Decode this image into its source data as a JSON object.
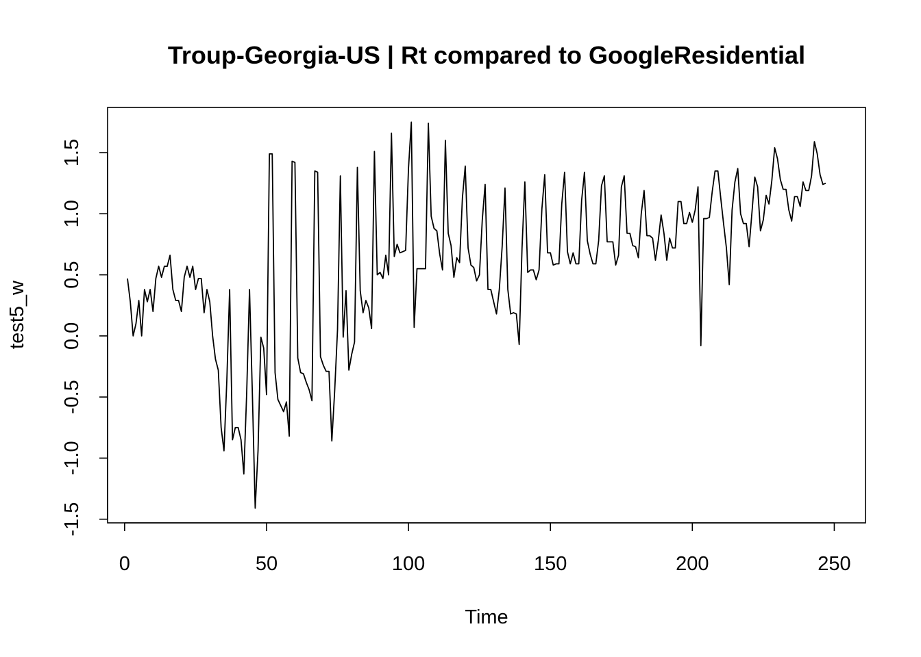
{
  "chart_data": {
    "type": "line",
    "title": "Troup-Georgia-US | Rt compared to GoogleResidential",
    "xlabel": "Time",
    "ylabel": "test5_w",
    "xlim": [
      -6,
      261
    ],
    "ylim": [
      -1.53,
      1.87
    ],
    "xticks": [
      0,
      50,
      100,
      150,
      200,
      250
    ],
    "xtick_labels": [
      "0",
      "50",
      "100",
      "150",
      "200",
      "250"
    ],
    "yticks": [
      -1.5,
      -1.0,
      -0.5,
      0.0,
      0.5,
      1.0,
      1.5
    ],
    "ytick_labels": [
      "-1.5",
      "-1.0",
      "-0.5",
      "0.0",
      "0.5",
      "1.0",
      "1.5"
    ],
    "grid": false,
    "legend": "none",
    "line_color": "#000000",
    "x_start": 1,
    "y": [
      0.47,
      0.28,
      0.0,
      0.1,
      0.29,
      0.0,
      0.38,
      0.28,
      0.38,
      0.2,
      0.47,
      0.57,
      0.48,
      0.57,
      0.57,
      0.66,
      0.38,
      0.29,
      0.29,
      0.2,
      0.48,
      0.57,
      0.48,
      0.57,
      0.38,
      0.47,
      0.47,
      0.19,
      0.38,
      0.28,
      0.0,
      -0.19,
      -0.28,
      -0.75,
      -0.94,
      -0.37,
      0.38,
      -0.85,
      -0.75,
      -0.75,
      -0.85,
      -1.13,
      -0.47,
      0.38,
      -0.47,
      -1.41,
      -0.94,
      -0.01,
      -0.1,
      -0.48,
      1.49,
      1.49,
      -0.3,
      -0.52,
      -0.57,
      -0.62,
      -0.54,
      -0.82,
      1.43,
      1.42,
      -0.18,
      -0.3,
      -0.31,
      -0.38,
      -0.44,
      -0.53,
      1.35,
      1.34,
      -0.17,
      -0.24,
      -0.29,
      -0.29,
      -0.86,
      -0.45,
      0.05,
      1.31,
      -0.01,
      0.37,
      -0.28,
      -0.15,
      -0.05,
      1.38,
      0.37,
      0.19,
      0.29,
      0.23,
      0.06,
      1.51,
      0.5,
      0.52,
      0.47,
      0.66,
      0.5,
      1.66,
      0.65,
      0.75,
      0.68,
      0.69,
      0.7,
      1.37,
      1.75,
      0.07,
      0.55,
      0.55,
      0.55,
      0.55,
      1.74,
      0.98,
      0.88,
      0.86,
      0.67,
      0.54,
      1.6,
      0.84,
      0.74,
      0.48,
      0.64,
      0.6,
      1.13,
      1.39,
      0.72,
      0.58,
      0.56,
      0.45,
      0.5,
      0.95,
      1.24,
      0.38,
      0.38,
      0.28,
      0.18,
      0.38,
      0.73,
      1.21,
      0.38,
      0.18,
      0.19,
      0.18,
      -0.07,
      0.72,
      1.26,
      0.52,
      0.54,
      0.54,
      0.46,
      0.54,
      1.04,
      1.32,
      0.68,
      0.68,
      0.58,
      0.59,
      0.59,
      1.08,
      1.34,
      0.69,
      0.59,
      0.68,
      0.59,
      0.59,
      1.11,
      1.34,
      0.78,
      0.67,
      0.59,
      0.59,
      0.78,
      1.23,
      1.31,
      0.77,
      0.77,
      0.77,
      0.58,
      0.66,
      1.22,
      1.31,
      0.84,
      0.84,
      0.74,
      0.73,
      0.64,
      1.0,
      1.19,
      0.82,
      0.82,
      0.8,
      0.62,
      0.78,
      0.99,
      0.84,
      0.62,
      0.8,
      0.72,
      0.72,
      1.1,
      1.1,
      0.92,
      0.92,
      1.01,
      0.93,
      1.03,
      1.22,
      -0.08,
      0.96,
      0.96,
      0.97,
      1.18,
      1.35,
      1.35,
      1.13,
      0.92,
      0.72,
      0.42,
      1.03,
      1.26,
      1.37,
      1.0,
      0.92,
      0.92,
      0.73,
      1.01,
      1.3,
      1.22,
      0.86,
      0.95,
      1.15,
      1.08,
      1.27,
      1.54,
      1.45,
      1.28,
      1.2,
      1.2,
      1.03,
      0.94,
      1.14,
      1.14,
      1.06,
      1.26,
      1.19,
      1.19,
      1.31,
      1.59,
      1.49,
      1.32,
      1.24,
      1.25
    ]
  }
}
